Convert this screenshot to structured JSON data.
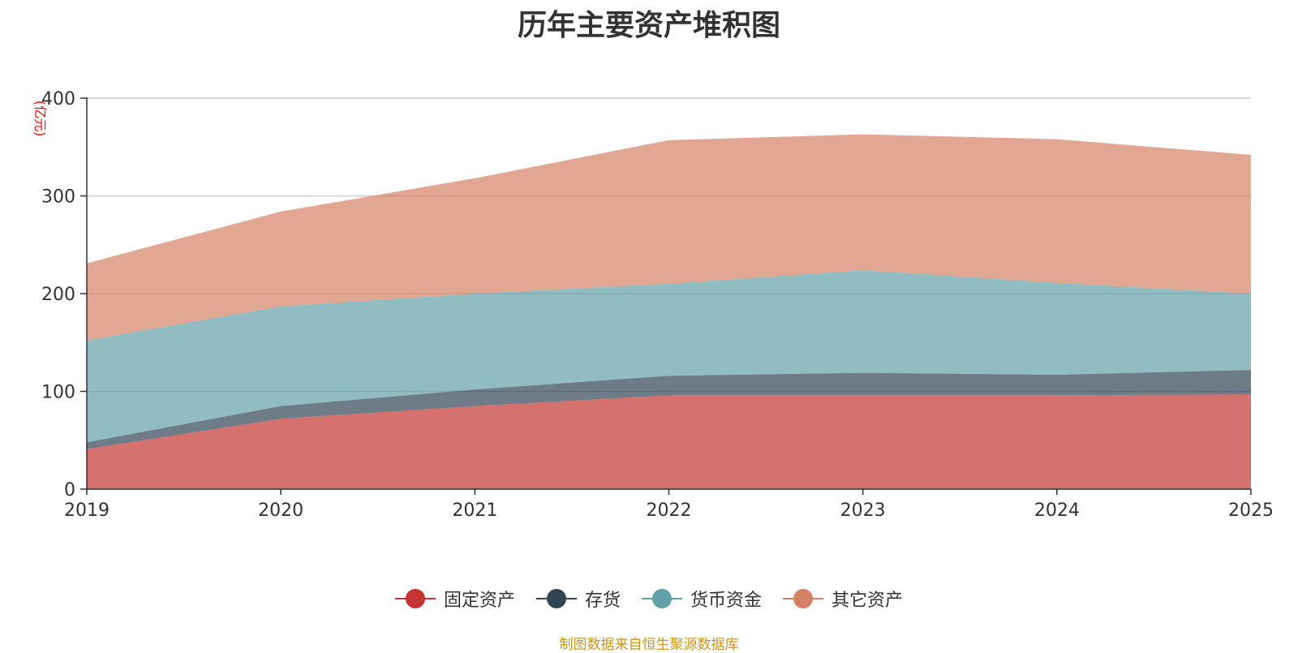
{
  "chart_data": {
    "type": "area",
    "stacked": true,
    "title": "历年主要资产堆积图",
    "unit_label": "(亿元)",
    "categories": [
      "2019",
      "2020",
      "2021",
      "2022",
      "2023",
      "2024",
      "2025"
    ],
    "ylim": [
      0,
      400
    ],
    "yticks": [
      0,
      100,
      200,
      300,
      400
    ],
    "grid": true,
    "legend_position": "bottom-center",
    "series": [
      {
        "name": "固定资产",
        "color": "#c23531",
        "values": [
          41,
          72,
          85,
          96,
          96,
          96,
          97
        ]
      },
      {
        "name": "存货",
        "color": "#2f4554",
        "values": [
          7,
          13,
          17,
          20,
          23,
          21,
          25
        ]
      },
      {
        "name": "货币资金",
        "color": "#61a0a8",
        "values": [
          104,
          102,
          98,
          94,
          105,
          94,
          78
        ]
      },
      {
        "name": "其它资产",
        "color": "#d48265",
        "values": [
          79,
          97,
          118,
          147,
          139,
          147,
          142
        ]
      }
    ]
  },
  "source_note": "制图数据来自恒生聚源数据库"
}
